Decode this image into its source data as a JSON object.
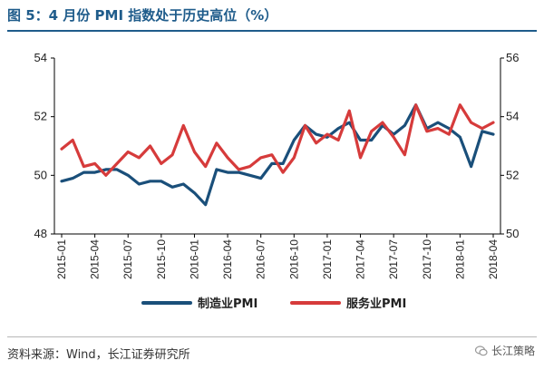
{
  "title": "图 5：4 月份 PMI 指数处于历史高位（%）",
  "source": "资料来源：Wind，长江证券研究所",
  "watermark": {
    "text": "长江策略",
    "icon": "wechat-icon"
  },
  "colors": {
    "manufacturing": "#1a4f7a",
    "services": "#d63b3b",
    "accent": "#1f5c8b"
  },
  "chart_data": {
    "type": "line",
    "x": [
      "2015-01",
      "2015-02",
      "2015-03",
      "2015-04",
      "2015-05",
      "2015-06",
      "2015-07",
      "2015-08",
      "2015-09",
      "2015-10",
      "2015-11",
      "2015-12",
      "2016-01",
      "2016-02",
      "2016-03",
      "2016-04",
      "2016-05",
      "2016-06",
      "2016-07",
      "2016-08",
      "2016-09",
      "2016-10",
      "2016-11",
      "2016-12",
      "2017-01",
      "2017-02",
      "2017-03",
      "2017-04",
      "2017-05",
      "2017-06",
      "2017-07",
      "2017-08",
      "2017-09",
      "2017-10",
      "2017-11",
      "2017-12",
      "2018-01",
      "2018-02",
      "2018-03",
      "2018-04"
    ],
    "x_tick_labels": [
      "2015-01",
      "2015-04",
      "2015-07",
      "2015-10",
      "2016-01",
      "2016-04",
      "2016-07",
      "2016-10",
      "2017-01",
      "2017-04",
      "2017-07",
      "2017-10",
      "2018-01",
      "2018-04"
    ],
    "series": [
      {
        "name": "制造业PMI",
        "axis": "left",
        "values": [
          49.8,
          49.9,
          50.1,
          50.1,
          50.2,
          50.2,
          50.0,
          49.7,
          49.8,
          49.8,
          49.6,
          49.7,
          49.4,
          49.0,
          50.2,
          50.1,
          50.1,
          50.0,
          49.9,
          50.4,
          50.4,
          51.2,
          51.7,
          51.4,
          51.3,
          51.6,
          51.8,
          51.2,
          51.2,
          51.7,
          51.4,
          51.7,
          52.4,
          51.6,
          51.8,
          51.6,
          51.3,
          50.3,
          51.5,
          51.4
        ]
      },
      {
        "name": "服务业PMI",
        "axis": "right",
        "values": [
          52.9,
          53.2,
          52.3,
          52.4,
          52.0,
          52.4,
          52.8,
          52.6,
          53.0,
          52.4,
          52.7,
          53.7,
          52.8,
          52.3,
          53.1,
          52.6,
          52.2,
          52.3,
          52.6,
          52.7,
          52.1,
          52.6,
          53.7,
          53.1,
          53.4,
          53.2,
          54.2,
          52.6,
          53.5,
          53.8,
          53.3,
          52.7,
          54.4,
          53.5,
          53.6,
          53.4,
          54.4,
          53.8,
          53.6,
          53.8
        ]
      }
    ],
    "y_left": {
      "min": 48,
      "max": 54,
      "ticks": [
        "48",
        "50",
        "52",
        "54"
      ]
    },
    "y_right": {
      "min": 50,
      "max": 56,
      "ticks": [
        "50",
        "52",
        "54",
        "56"
      ]
    },
    "grid": false,
    "legend": "bottom"
  }
}
